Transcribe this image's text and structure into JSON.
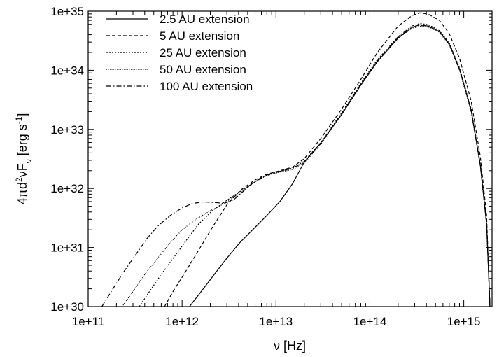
{
  "chart_data": {
    "type": "line",
    "title": "",
    "xlabel": "ν [Hz]",
    "ylabel_parts": [
      "4πd",
      "2",
      "νF",
      "ν",
      " [erg s",
      "-1",
      "]"
    ],
    "xscale": "log",
    "yscale": "log",
    "xlim": [
      100000000000.0,
      2000000000000000.0
    ],
    "ylim": [
      1e+30,
      1e+35
    ],
    "grid": false,
    "legend_position": "top-left",
    "x_ticks": [
      {
        "value": 100000000000.0,
        "label": "1e+11"
      },
      {
        "value": 1000000000000.0,
        "label": "1e+12"
      },
      {
        "value": 10000000000000.0,
        "label": "1e+13"
      },
      {
        "value": 100000000000000.0,
        "label": "1e+14"
      },
      {
        "value": 1000000000000000.0,
        "label": "1e+15"
      }
    ],
    "y_ticks": [
      {
        "value": 1e+30,
        "label": "1e+30"
      },
      {
        "value": 1e+31,
        "label": "1e+31"
      },
      {
        "value": 1e+32,
        "label": "1e+32"
      },
      {
        "value": 1e+33,
        "label": "1e+33"
      },
      {
        "value": 1e+34,
        "label": "1e+34"
      },
      {
        "value": 1e+35,
        "label": "1e+35"
      }
    ],
    "series": [
      {
        "name": "2.5 AU extension",
        "dash": "solid",
        "x": [
          1200000000000.0,
          1600000000000.0,
          2200000000000.0,
          3000000000000.0,
          4200000000000.0,
          6000000000000.0,
          8000000000000.0,
          11000000000000.0,
          15000000000000.0,
          20000000000000.0,
          30000000000000.0,
          50000000000000.0,
          80000000000000.0,
          120000000000000.0,
          200000000000000.0,
          280000000000000.0,
          340000000000000.0,
          420000000000000.0,
          550000000000000.0,
          700000000000000.0,
          900000000000000.0,
          1200000000000000.0,
          1500000000000000.0,
          1750000000000000.0,
          1900000000000000.0
        ],
        "y": [
          1e+30,
          1.8e+30,
          3.5e+30,
          6.6e+30,
          1.25e+31,
          2.2e+31,
          3.5e+31,
          6e+31,
          1.2e+32,
          2.8e+32,
          5.9e+32,
          1.78e+33,
          5.6e+33,
          1.4e+34,
          3.5e+34,
          5.3e+34,
          5.9e+34,
          5.6e+34,
          4.5e+34,
          2.8e+34,
          1.05e+34,
          2.1e+33,
          2.5e+32,
          2.5e+31,
          1e+30
        ]
      },
      {
        "name": "5 AU extension",
        "dash": "dashed",
        "x": [
          650000000000.0,
          800000000000.0,
          1100000000000.0,
          1500000000000.0,
          2100000000000.0,
          3000000000000.0,
          4200000000000.0,
          6000000000000.0,
          8000000000000.0,
          11000000000000.0,
          15000000000000.0,
          20000000000000.0,
          30000000000000.0,
          50000000000000.0,
          80000000000000.0,
          120000000000000.0,
          200000000000000.0,
          280000000000000.0,
          340000000000000.0,
          420000000000000.0,
          550000000000000.0,
          700000000000000.0,
          900000000000000.0,
          1200000000000000.0,
          1500000000000000.0,
          1750000000000000.0,
          1900000000000000.0
        ],
        "y": [
          1e+30,
          1.8e+30,
          4e+30,
          9e+30,
          2.2e+31,
          5.3e+31,
          9.4e+31,
          1.4e+32,
          1.75e+32,
          2e+32,
          2.3e+32,
          3.2e+32,
          7e+32,
          2.2e+33,
          7e+33,
          2e+34,
          5.6e+34,
          8.4e+34,
          9.4e+34,
          8.9e+34,
          7e+34,
          4.2e+34,
          1.6e+34,
          3e+33,
          3.5e+32,
          3.5e+31,
          1e+30
        ]
      },
      {
        "name": "25 AU extension",
        "dash": "dotted",
        "x": [
          350000000000.0,
          450000000000.0,
          600000000000.0,
          800000000000.0,
          1100000000000.0,
          1500000000000.0,
          2100000000000.0,
          3000000000000.0,
          4200000000000.0,
          6000000000000.0,
          8000000000000.0,
          11000000000000.0,
          15000000000000.0,
          20000000000000.0,
          30000000000000.0,
          50000000000000.0,
          80000000000000.0,
          120000000000000.0,
          200000000000000.0,
          280000000000000.0,
          340000000000000.0,
          420000000000000.0,
          550000000000000.0,
          700000000000000.0,
          900000000000000.0,
          1200000000000000.0,
          1500000000000000.0,
          1750000000000000.0,
          1900000000000000.0
        ],
        "y": [
          1e+30,
          1.8e+30,
          3.5e+30,
          6.5e+30,
          1.3e+31,
          2.5e+31,
          4.2e+31,
          6.3e+31,
          9e+31,
          1.3e+32,
          1.7e+32,
          1.95e+32,
          2.2e+32,
          2.9e+32,
          6e+32,
          1.9e+33,
          6e+33,
          1.5e+34,
          3.7e+34,
          5.6e+34,
          6.2e+34,
          5.9e+34,
          4.7e+34,
          2.9e+34,
          1.1e+34,
          2.2e+33,
          2.6e+32,
          2.6e+31,
          1e+30
        ]
      },
      {
        "name": "50 AU extension",
        "dash": "fine-dotted",
        "x": [
          230000000000.0,
          300000000000.0,
          400000000000.0,
          550000000000.0,
          750000000000.0,
          1000000000000.0,
          1400000000000.0,
          2000000000000.0,
          2800000000000.0,
          4000000000000.0,
          6000000000000.0,
          8000000000000.0,
          11000000000000.0,
          15000000000000.0,
          20000000000000.0,
          30000000000000.0,
          50000000000000.0,
          80000000000000.0,
          120000000000000.0,
          200000000000000.0,
          280000000000000.0,
          340000000000000.0,
          420000000000000.0,
          550000000000000.0,
          700000000000000.0,
          900000000000000.0,
          1200000000000000.0,
          1500000000000000.0,
          1750000000000000.0,
          1900000000000000.0
        ],
        "y": [
          1e+30,
          1.8e+30,
          3.5e+30,
          6.6e+30,
          1.2e+31,
          2e+31,
          3e+31,
          4.2e+31,
          5.5e+31,
          8e+31,
          1.3e+32,
          1.65e+32,
          1.9e+32,
          2.1e+32,
          2.7e+32,
          5.6e+32,
          1.8e+33,
          5.6e+33,
          1.4e+34,
          3.5e+34,
          5.1e+34,
          5.6e+34,
          5.4e+34,
          4.4e+34,
          2.7e+34,
          1e+34,
          2e+33,
          2.4e+32,
          2.4e+31,
          1e+30
        ]
      },
      {
        "name": "100 AU extension",
        "dash": "dash-dot",
        "x": [
          140000000000.0,
          180000000000.0,
          240000000000.0,
          320000000000.0,
          420000000000.0,
          550000000000.0,
          750000000000.0,
          1000000000000.0,
          1300000000000.0,
          1700000000000.0,
          2200000000000.0,
          2800000000000.0,
          3500000000000.0,
          4500000000000.0,
          6000000000000.0,
          8000000000000.0,
          11000000000000.0,
          15000000000000.0,
          20000000000000.0,
          30000000000000.0,
          50000000000000.0,
          80000000000000.0,
          120000000000000.0,
          200000000000000.0,
          280000000000000.0,
          340000000000000.0,
          420000000000000.0,
          550000000000000.0,
          700000000000000.0,
          900000000000000.0,
          1200000000000000.0,
          1500000000000000.0,
          1750000000000000.0,
          1900000000000000.0
        ],
        "y": [
          1e+30,
          1.9e+30,
          3.9e+30,
          7.5e+30,
          1.4e+31,
          2.3e+31,
          3.5e+31,
          4.7e+31,
          5.6e+31,
          5.9e+31,
          5.8e+31,
          5.6e+31,
          6.3e+31,
          9e+31,
          1.35e+32,
          1.7e+32,
          1.95e+32,
          2.2e+32,
          2.8e+32,
          5.8e+32,
          1.85e+33,
          5.8e+33,
          1.45e+34,
          3.6e+34,
          5.3e+34,
          5.8e+34,
          5.6e+34,
          4.5e+34,
          2.8e+34,
          1.05e+34,
          2.1e+33,
          2.5e+32,
          2.5e+31,
          1e+30
        ]
      }
    ]
  }
}
